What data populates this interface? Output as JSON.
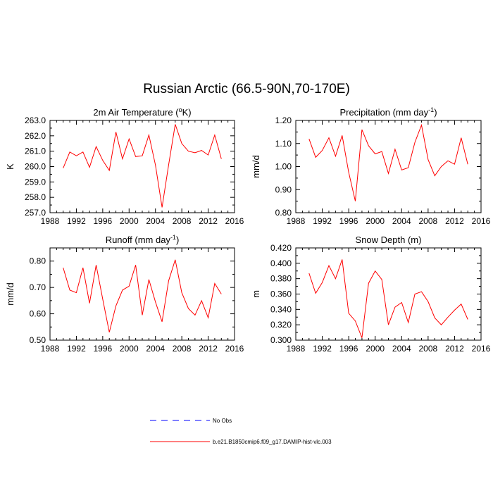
{
  "title": "Russian Arctic (66.5-90N,70-170E)",
  "legend": {
    "position": "bottom-center",
    "entries": [
      {
        "label": "No Obs",
        "color": "#0000ff",
        "style": "dashed"
      },
      {
        "label": "b.e21.B1850cmip6.f09_g17.DAMIP-hist-vlc.003",
        "color": "#ff0000",
        "style": "solid"
      }
    ]
  },
  "chart_data": [
    {
      "type": "line",
      "title": "2m Air Temperature (",
      "title_super": "o",
      "title_tail": "K)",
      "ylabel": "K",
      "xlabel": "",
      "xlim": [
        1988,
        2016
      ],
      "xticks": [
        "1988",
        "1992",
        "1996",
        "2000",
        "2004",
        "2008",
        "2012",
        "2016"
      ],
      "ylim": [
        257.0,
        263.0
      ],
      "yticks": [
        "257.0",
        "258.0",
        "259.0",
        "260.0",
        "261.0",
        "262.0",
        "263.0"
      ],
      "series": [
        {
          "name": "b.e21.B1850cmip6.f09_g17.DAMIP-hist-vlc.003",
          "color": "#ff0000",
          "x": [
            1990,
            1991,
            1992,
            1993,
            1994,
            1995,
            1996,
            1997,
            1998,
            1999,
            2000,
            2001,
            2002,
            2003,
            2004,
            2005,
            2006,
            2007,
            2008,
            2009,
            2010,
            2011,
            2012,
            2013,
            2014
          ],
          "values": [
            259.9,
            260.95,
            260.7,
            260.95,
            259.95,
            261.3,
            260.4,
            259.75,
            262.25,
            260.5,
            261.8,
            260.65,
            260.7,
            262.05,
            260.1,
            257.35,
            260.1,
            262.75,
            261.5,
            261.0,
            260.9,
            261.05,
            260.75,
            262.05,
            260.5
          ]
        }
      ]
    },
    {
      "type": "line",
      "title": "Precipitation (mm day",
      "title_super": "-1",
      "title_tail": ")",
      "ylabel": "mm/d",
      "xlabel": "",
      "xlim": [
        1988,
        2016
      ],
      "xticks": [
        "1988",
        "1992",
        "1996",
        "2000",
        "2004",
        "2008",
        "2012",
        "2016"
      ],
      "ylim": [
        0.8,
        1.2
      ],
      "yticks": [
        "0.80",
        "0.90",
        "1.00",
        "1.10",
        "1.20"
      ],
      "series": [
        {
          "name": "b.e21.B1850cmip6.f09_g17.DAMIP-hist-vlc.003",
          "color": "#ff0000",
          "x": [
            1990,
            1991,
            1992,
            1993,
            1994,
            1995,
            1996,
            1997,
            1998,
            1999,
            2000,
            2001,
            2002,
            2003,
            2004,
            2005,
            2006,
            2007,
            2008,
            2009,
            2010,
            2011,
            2012,
            2013,
            2014
          ],
          "values": [
            1.12,
            1.04,
            1.07,
            1.125,
            1.045,
            1.135,
            0.975,
            0.85,
            1.16,
            1.09,
            1.055,
            1.065,
            0.97,
            1.075,
            0.985,
            0.995,
            1.105,
            1.18,
            1.03,
            0.96,
            1.0,
            1.025,
            1.01,
            1.125,
            1.01
          ]
        }
      ]
    },
    {
      "type": "line",
      "title": "Runoff (mm day",
      "title_super": "-1",
      "title_tail": ")",
      "ylabel": "mm/d",
      "xlabel": "",
      "xlim": [
        1988,
        2016
      ],
      "xticks": [
        "1988",
        "1992",
        "1996",
        "2000",
        "2004",
        "2008",
        "2012",
        "2016"
      ],
      "ylim": [
        0.5,
        0.85
      ],
      "yticks": [
        "0.50",
        "0.60",
        "0.70",
        "0.80"
      ],
      "series": [
        {
          "name": "b.e21.B1850cmip6.f09_g17.DAMIP-hist-vlc.003",
          "color": "#ff0000",
          "x": [
            1990,
            1991,
            1992,
            1993,
            1994,
            1995,
            1996,
            1997,
            1998,
            1999,
            2000,
            2001,
            2002,
            2003,
            2004,
            2005,
            2006,
            2007,
            2008,
            2009,
            2010,
            2011,
            2012,
            2013,
            2014
          ],
          "values": [
            0.775,
            0.69,
            0.68,
            0.775,
            0.64,
            0.785,
            0.655,
            0.53,
            0.63,
            0.69,
            0.705,
            0.785,
            0.595,
            0.73,
            0.645,
            0.57,
            0.725,
            0.805,
            0.68,
            0.62,
            0.595,
            0.65,
            0.585,
            0.715,
            0.675
          ]
        }
      ]
    },
    {
      "type": "line",
      "title": "Snow Depth (m)",
      "title_super": "",
      "title_tail": "",
      "ylabel": "m",
      "xlabel": "",
      "xlim": [
        1988,
        2016
      ],
      "xticks": [
        "1988",
        "1992",
        "1996",
        "2000",
        "2004",
        "2008",
        "2012",
        "2016"
      ],
      "ylim": [
        0.3,
        0.42
      ],
      "yticks": [
        "0.300",
        "0.320",
        "0.340",
        "0.360",
        "0.380",
        "0.400",
        "0.420"
      ],
      "series": [
        {
          "name": "b.e21.B1850cmip6.f09_g17.DAMIP-hist-vlc.003",
          "color": "#ff0000",
          "x": [
            1990,
            1991,
            1992,
            1993,
            1994,
            1995,
            1996,
            1997,
            1998,
            1999,
            2000,
            2001,
            2002,
            2003,
            2004,
            2005,
            2006,
            2007,
            2008,
            2009,
            2010,
            2011,
            2012,
            2013,
            2014
          ],
          "values": [
            0.387,
            0.361,
            0.375,
            0.397,
            0.38,
            0.405,
            0.335,
            0.325,
            0.303,
            0.374,
            0.39,
            0.379,
            0.32,
            0.343,
            0.349,
            0.323,
            0.36,
            0.363,
            0.35,
            0.329,
            0.32,
            0.33,
            0.339,
            0.347,
            0.327
          ]
        }
      ]
    }
  ]
}
